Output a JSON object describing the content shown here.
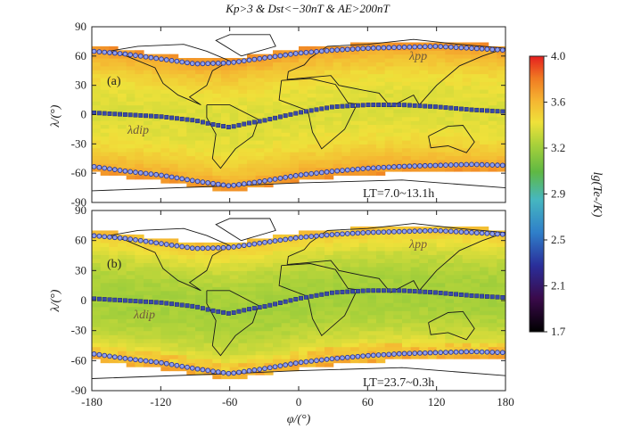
{
  "chart_data": {
    "type": "heatmap",
    "title": "Kp>3 & Dst<−30nT & AE>200nT",
    "xlabel": "φ/(°)",
    "ylabel": "λ/(°)",
    "xlim": [
      -180,
      180
    ],
    "ylim": [
      -90,
      90
    ],
    "x_ticks": [
      "-180",
      "-120",
      "-60",
      "0",
      "60",
      "120",
      "180"
    ],
    "y_ticks": [
      "90",
      "60",
      "30",
      "0",
      "-30",
      "-60",
      "-90"
    ],
    "colorbar": {
      "label": "lg(Te-/K)",
      "ticks": [
        "4.0",
        "3.6",
        "3.2",
        "2.9",
        "2.5",
        "2.1",
        "1.7"
      ],
      "range": [
        1.7,
        4.0
      ]
    },
    "panels": [
      {
        "label": "(a)",
        "local_time": "LT=7.0~13.1h",
        "dip_label": "λdip",
        "pp_label": "λpp",
        "equator_value": 3.4,
        "high_lat_value": 3.75
      },
      {
        "label": "(b)",
        "local_time": "LT=23.7~0.3h",
        "dip_label": "λdip",
        "pp_label": "λpp",
        "equator_value": 3.25,
        "high_lat_value": 3.6
      }
    ],
    "dip_equator": {
      "lon": [
        -180,
        -150,
        -120,
        -90,
        -75,
        -60,
        -45,
        -30,
        0,
        30,
        60,
        90,
        120,
        150,
        180
      ],
      "lat": [
        2,
        0,
        -2,
        -6,
        -10,
        -13,
        -9,
        -6,
        2,
        8,
        10,
        10,
        8,
        5,
        3
      ]
    },
    "plasmapause_north": {
      "lon": [
        -180,
        -150,
        -120,
        -90,
        -60,
        -30,
        0,
        30,
        60,
        90,
        120,
        150,
        180
      ],
      "lat": [
        65,
        62,
        57,
        52,
        53,
        58,
        63,
        66,
        68,
        69,
        70,
        68,
        66
      ]
    },
    "plasmapause_south": {
      "lon": [
        -180,
        -150,
        -120,
        -90,
        -60,
        -30,
        0,
        30,
        60,
        90,
        120,
        150,
        180
      ],
      "lat": [
        -53,
        -58,
        -62,
        -68,
        -73,
        -68,
        -62,
        -58,
        -55,
        -53,
        -52,
        -51,
        -52
      ]
    }
  }
}
